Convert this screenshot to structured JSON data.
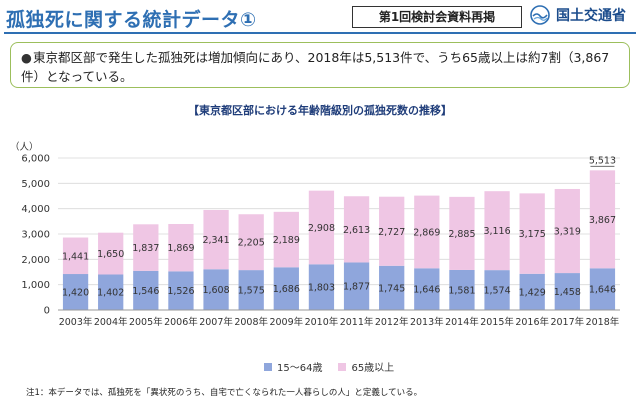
{
  "header": {
    "title": "孤独死に関する統計データ①",
    "meeting": "第1回検討会資料再掲",
    "ministry": "国土交通省"
  },
  "summary": {
    "bullet": "●",
    "text": "東京都区部で発生した孤独死は増加傾向にあり、2018年は5,513件で、うち65歳以上は約7割（3,867件）となっている。"
  },
  "colors": {
    "brand": "#2e6fb3",
    "series_15_64": "#8fa6dc",
    "series_65_plus": "#efc6e4",
    "border_green": "#9cbf5c"
  },
  "chart_data": {
    "type": "bar",
    "stacked": true,
    "title": "【東京都区部における年齢階級別の孤独死数の推移】",
    "ylabel": "（人）",
    "xlabel": "",
    "ylim": [
      0,
      6000
    ],
    "yticks": [
      "0",
      "1,000",
      "2,000",
      "3,000",
      "4,000",
      "5,000",
      "6,000"
    ],
    "categories": [
      "2003年",
      "2004年",
      "2005年",
      "2006年",
      "2007年",
      "2008年",
      "2009年",
      "2010年",
      "2011年",
      "2012年",
      "2013年",
      "2014年",
      "2015年",
      "2016年",
      "2017年",
      "2018年"
    ],
    "series": [
      {
        "name": "15～64歳",
        "values": [
          1420,
          1402,
          1546,
          1526,
          1608,
          1575,
          1686,
          1803,
          1877,
          1745,
          1646,
          1581,
          1574,
          1429,
          1458,
          1646
        ],
        "labels": [
          "1,420",
          "1,402",
          "1,546",
          "1,526",
          "1,608",
          "1,575",
          "1,686",
          "1,803",
          "1,877",
          "1,745",
          "1,646",
          "1,581",
          "1,574",
          "1,429",
          "1,458",
          "1,646"
        ]
      },
      {
        "name": "65歳以上",
        "values": [
          1441,
          1650,
          1837,
          1869,
          2341,
          2205,
          2189,
          2908,
          2613,
          2727,
          2869,
          2885,
          3116,
          3175,
          3319,
          3867
        ],
        "labels": [
          "1,441",
          "1,650",
          "1,837",
          "1,869",
          "2,341",
          "2,205",
          "2,189",
          "2,908",
          "2,613",
          "2,727",
          "2,869",
          "2,885",
          "3,116",
          "3,175",
          "3,319",
          "3,867"
        ]
      }
    ],
    "total_annotation": {
      "category": "2018年",
      "value": 5513,
      "label": "5,513"
    },
    "legend_position": "bottom"
  },
  "footnote": "注1：本データでは、孤独死を「異状死のうち、自宅で亡くなられた一人暮らしの人」と定義している。"
}
